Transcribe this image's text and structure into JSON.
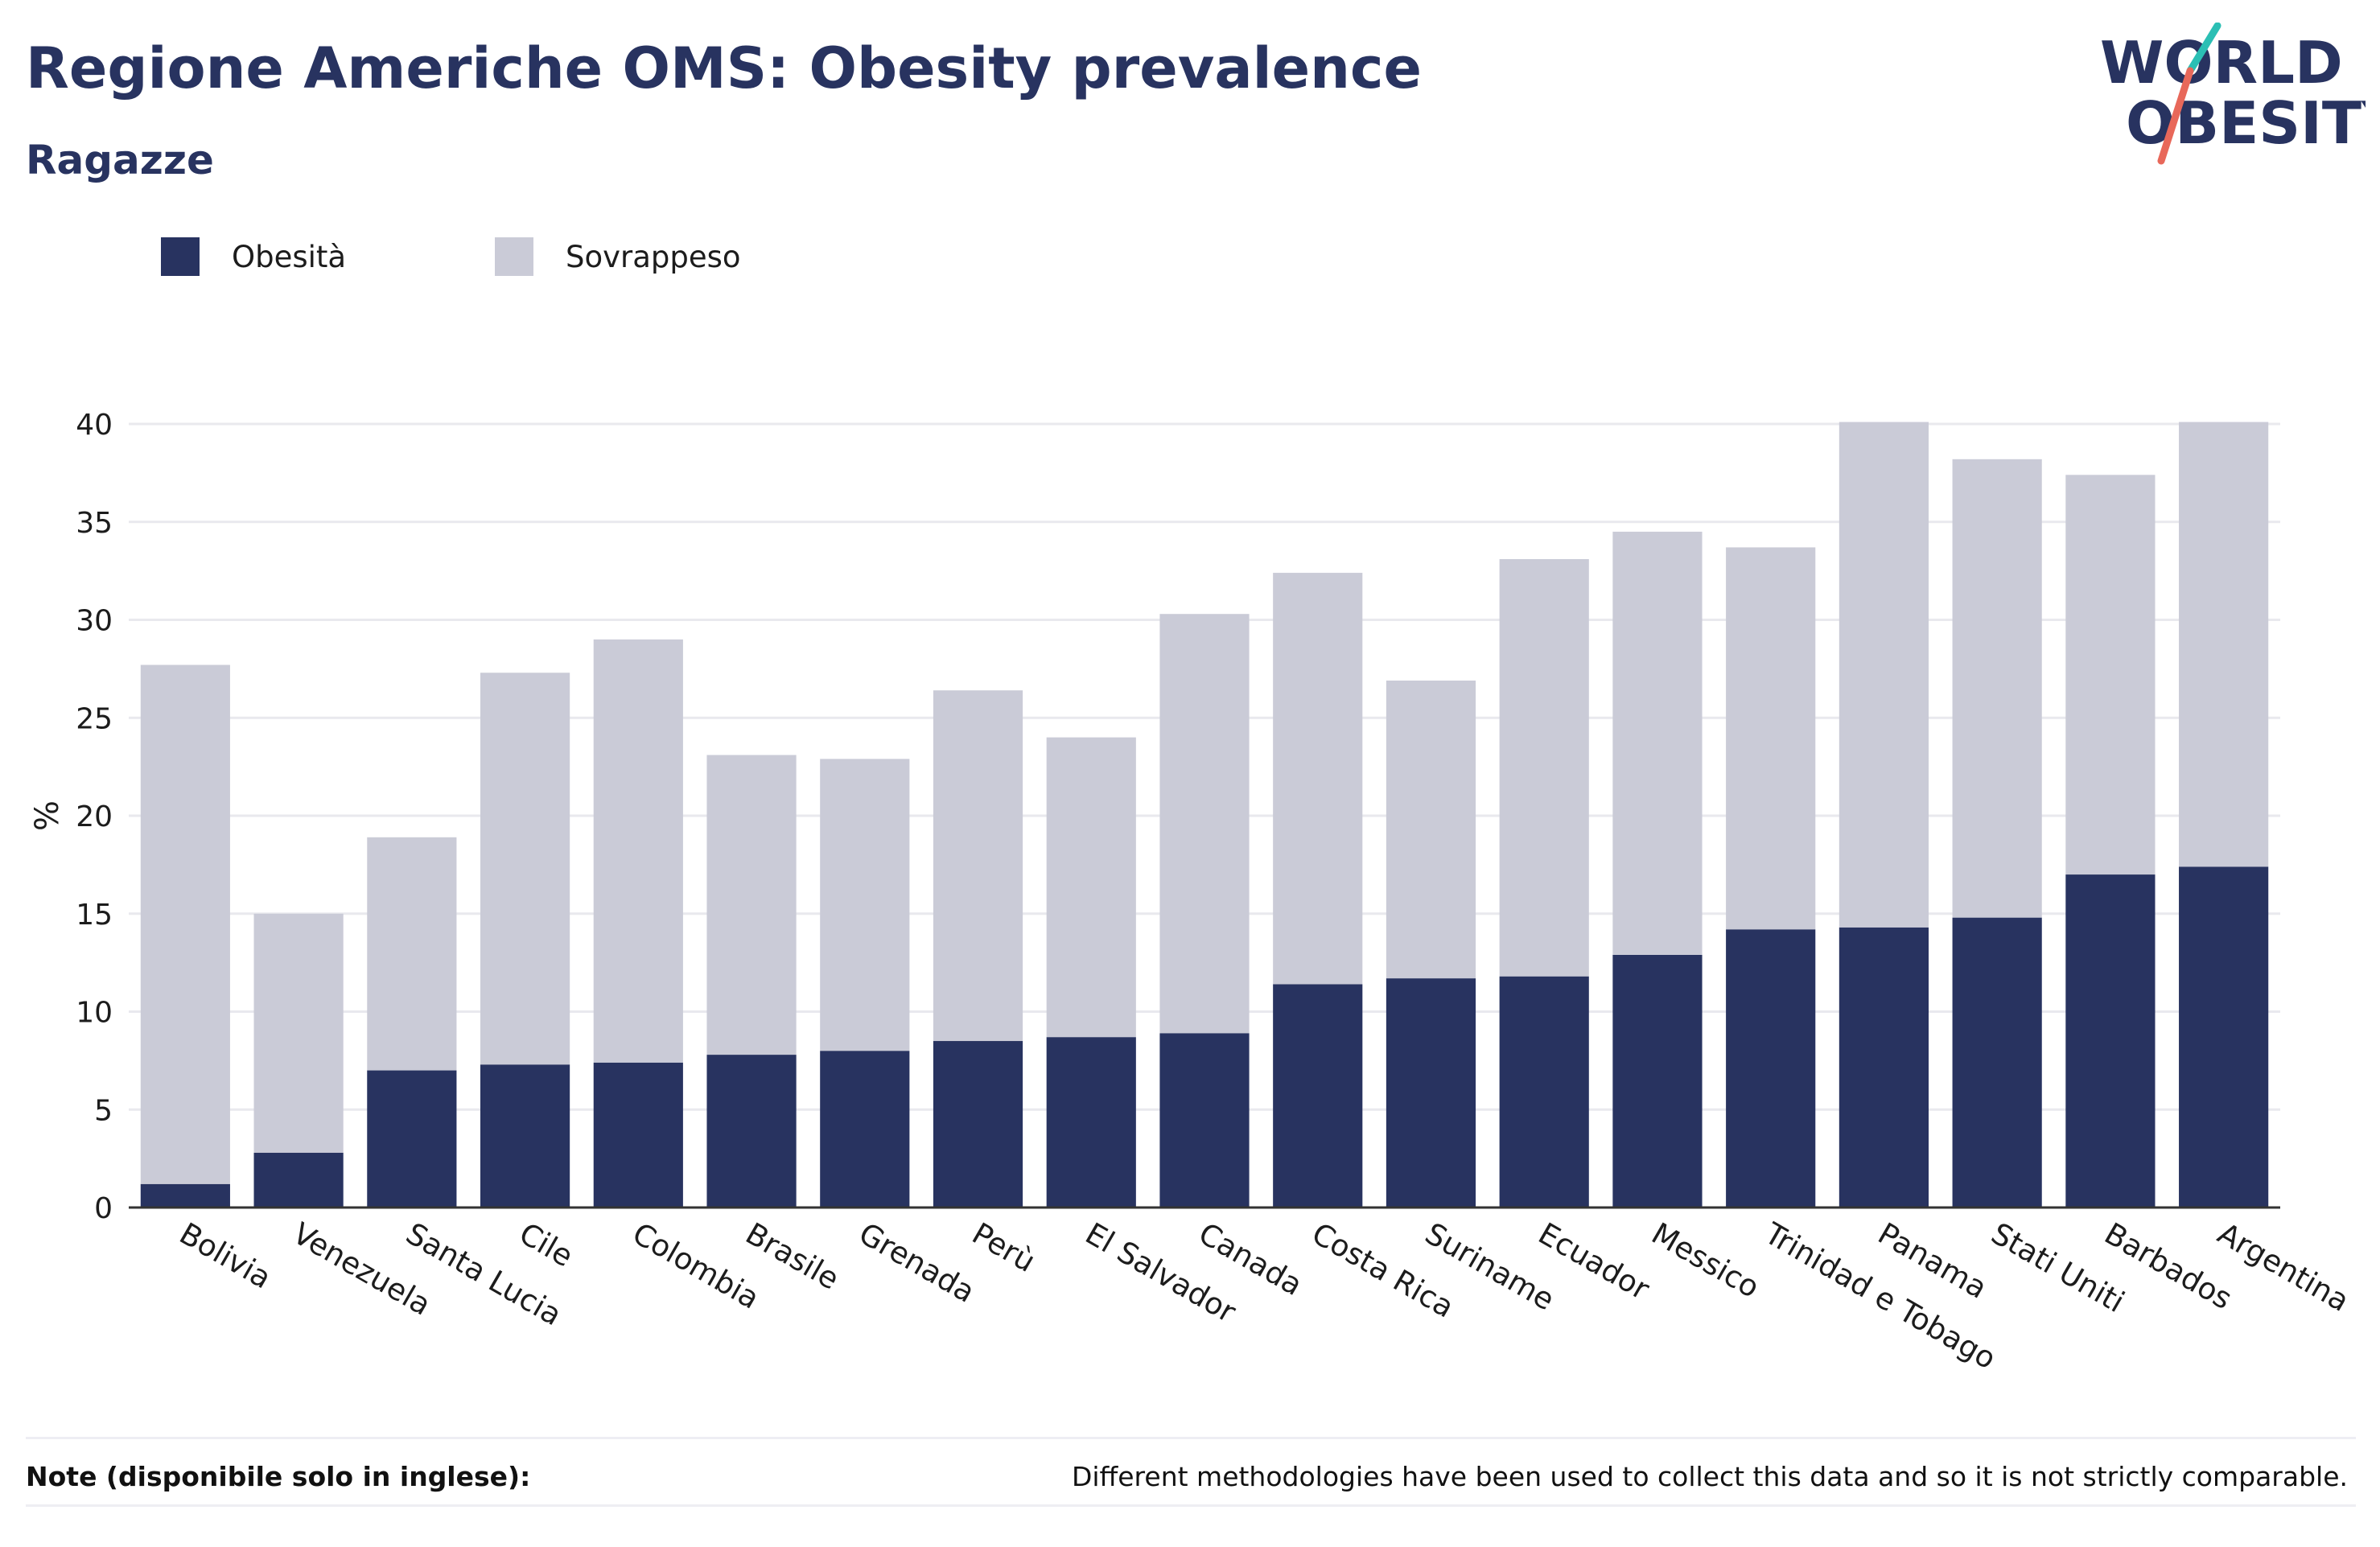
{
  "title": "Regione Americhe OMS: Obesity prevalence",
  "subtitle": "Ragazze",
  "logo": {
    "line1": "WORLD",
    "line2": "OBESITY",
    "accent_colors": [
      "#2bbfb4",
      "#e8685a"
    ]
  },
  "footer": {
    "note_label": "Note (disponibile solo in inglese):",
    "note_text": "Different methodologies have been used to collect this data and so it is not strictly comparable."
  },
  "colors": {
    "obesity": "#283360",
    "overweight": "#cacbd7",
    "text": "#283360"
  },
  "chart_data": {
    "type": "bar",
    "stacked": true,
    "categories": [
      "Bolivia",
      "Venezuela",
      "Santa Lucia",
      "Cile",
      "Colombia",
      "Brasile",
      "Grenada",
      "Perù",
      "El Salvador",
      "Canada",
      "Costa Rica",
      "Suriname",
      "Ecuador",
      "Messico",
      "Trinidad e Tobago",
      "Panama",
      "Stati Uniti",
      "Barbados",
      "Argentina"
    ],
    "series": [
      {
        "name": "Obesità",
        "color": "#283360",
        "values": [
          1.2,
          2.8,
          7.0,
          7.3,
          7.4,
          7.8,
          8.0,
          8.5,
          8.7,
          8.9,
          11.4,
          11.7,
          11.8,
          12.9,
          14.2,
          14.3,
          14.8,
          17.0,
          17.4
        ]
      },
      {
        "name": "Sovrappeso",
        "color": "#cacbd7",
        "values": [
          26.5,
          12.2,
          11.9,
          20.0,
          21.6,
          15.3,
          14.9,
          17.9,
          15.3,
          21.4,
          21.0,
          15.2,
          21.3,
          21.6,
          19.5,
          25.8,
          23.4,
          20.4,
          22.7
        ]
      }
    ],
    "ylabel": "%",
    "xlabel": "",
    "ylim": [
      0,
      40
    ],
    "yticks": [
      0,
      5,
      10,
      15,
      20,
      25,
      30,
      35,
      40
    ],
    "grid": true,
    "legend_position": "top-left"
  }
}
